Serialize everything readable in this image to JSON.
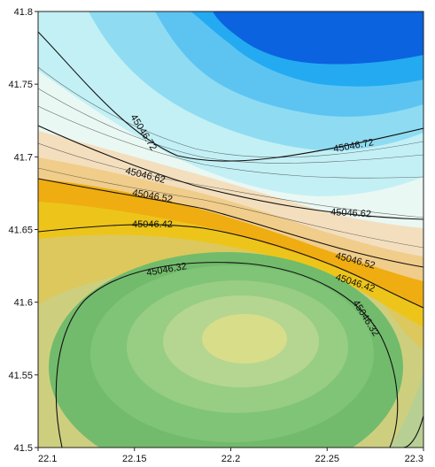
{
  "chart_data": {
    "type": "contour",
    "title": "",
    "xlabel": "",
    "ylabel": "",
    "xlim": [
      22.1,
      22.3
    ],
    "ylim": [
      41.5,
      41.8
    ],
    "x_ticks": [
      "22.1",
      "22.15",
      "22.2",
      "22.25",
      "22.3"
    ],
    "y_ticks": [
      "41.5",
      "41.55",
      "41.6",
      "41.65",
      "41.7",
      "41.75",
      "41.8"
    ],
    "grid": false,
    "legend": "none",
    "contour_labels": [
      "45046.32",
      "45046.42",
      "45046.52",
      "45046.62",
      "45046.72"
    ],
    "field_extremes": {
      "maximum_location": [
        22.2,
        41.8
      ],
      "minimum_location": [
        22.21,
        41.575
      ]
    },
    "colors": {
      "high": "#0b63e0",
      "blue": "#24aaf0",
      "light_cyan": "#d6f6f8",
      "cream": "#f3dfbe",
      "orange": "#efad11",
      "yellow": "#edc51a",
      "green": "#72bb6c",
      "low": "#d8dd8a"
    }
  }
}
